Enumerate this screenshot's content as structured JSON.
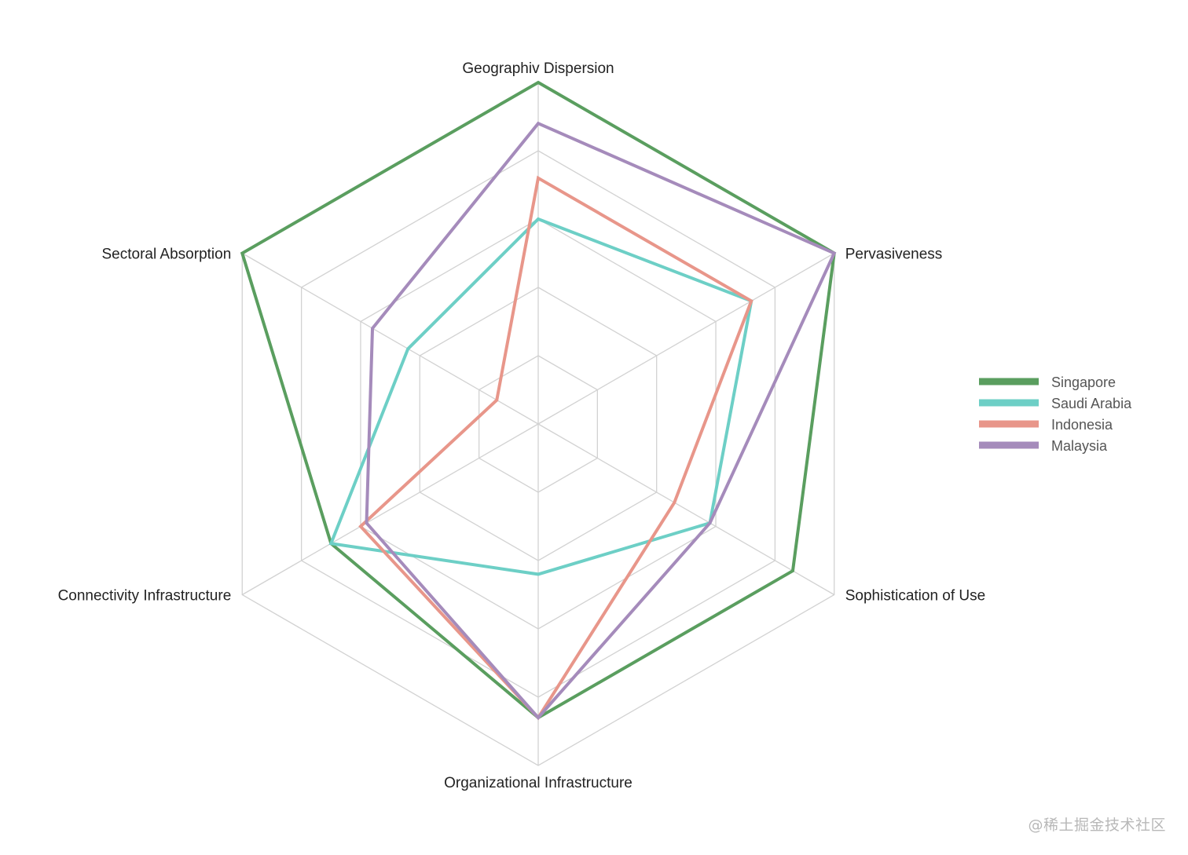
{
  "chart_data": {
    "type": "radar",
    "title": "",
    "axes": [
      "Geographiv Dispersion",
      "Pervasiveness",
      "Sophistication of Use",
      "Organizational Infrastructure",
      "Connectivity Infrastructure",
      "Sectoral Absorption"
    ],
    "rlim": [
      0,
      5
    ],
    "rings": 5,
    "grid": true,
    "legend_position": "right",
    "series": [
      {
        "name": "Singapore",
        "color": "#5a9e5f",
        "values": [
          5,
          5,
          4.3,
          4.3,
          3.5,
          5
        ]
      },
      {
        "name": "Saudi Arabia",
        "color": "#6dcfc6",
        "values": [
          3,
          3.6,
          2.9,
          2.2,
          3.5,
          2.2
        ]
      },
      {
        "name": "Indonesia",
        "color": "#e8968a",
        "values": [
          3.6,
          3.6,
          2.3,
          4.3,
          3.0,
          0.7
        ]
      },
      {
        "name": "Malaysia",
        "color": "#a58bbb",
        "values": [
          4.4,
          5,
          2.9,
          4.3,
          2.9,
          2.8
        ]
      }
    ]
  },
  "watermark": "@稀土掘金技术社区"
}
